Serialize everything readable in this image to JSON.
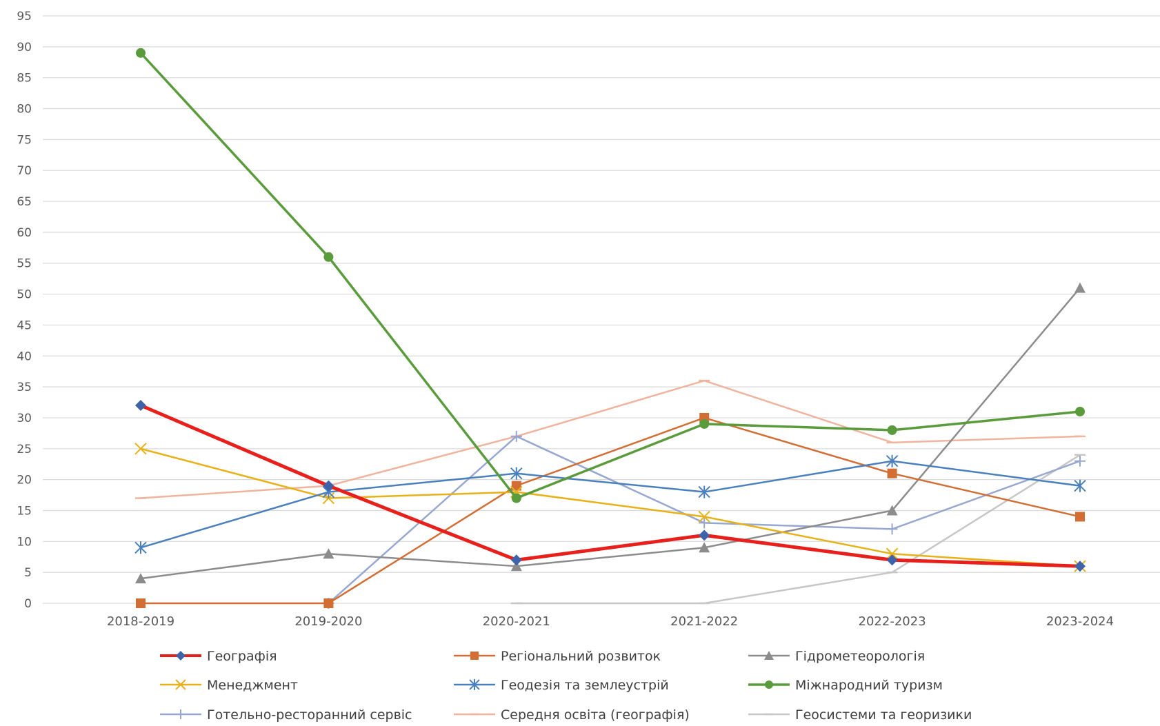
{
  "chart_data": {
    "type": "line",
    "categories": [
      "2018-2019",
      "2019-2020",
      "2020-2021",
      "2021-2022",
      "2022-2023",
      "2023-2024"
    ],
    "ylim": [
      0,
      95
    ],
    "yticks": [
      0,
      5,
      10,
      15,
      20,
      25,
      30,
      35,
      40,
      45,
      50,
      55,
      60,
      65,
      70,
      75,
      80,
      85,
      90,
      95
    ],
    "grid": true,
    "legend_position": "bottom",
    "series": [
      {
        "name": "Географія",
        "values": [
          32,
          19,
          7,
          11,
          7,
          6
        ],
        "color": "#e8201c",
        "marker": "diamond",
        "marker_color": "#3f63a8",
        "width": 5
      },
      {
        "name": "Регіональний розвиток",
        "values": [
          0,
          0,
          19,
          30,
          21,
          14
        ],
        "color": "#d26e33",
        "marker": "square",
        "marker_color": "#d26e33",
        "width": 2.5
      },
      {
        "name": "Гідрометеорологія",
        "values": [
          4,
          8,
          6,
          9,
          15,
          51
        ],
        "color": "#8c8c8c",
        "marker": "triangle",
        "marker_color": "#8c8c8c",
        "width": 2.5
      },
      {
        "name": "Менеджмент",
        "values": [
          25,
          17,
          18,
          14,
          8,
          6
        ],
        "color": "#e8b117",
        "marker": "x",
        "marker_color": "#e8b117",
        "width": 2.5
      },
      {
        "name": "Геодезія та землеустрій",
        "values": [
          9,
          18,
          21,
          18,
          23,
          19
        ],
        "color": "#4a80bd",
        "marker": "star",
        "marker_color": "#4a80bd",
        "width": 2.5
      },
      {
        "name": "Міжнародний туризм",
        "values": [
          89,
          56,
          17,
          29,
          28,
          31
        ],
        "color": "#5a9b3b",
        "marker": "circle",
        "marker_color": "#5a9b3b",
        "width": 3.5
      },
      {
        "name": "Готельно-ресторанний сервіс",
        "values": [
          null,
          0,
          27,
          13,
          12,
          23
        ],
        "color": "#97a7cf",
        "marker": "plus",
        "marker_color": "#97a7cf",
        "width": 2.5
      },
      {
        "name": "Середня освіта (географія)",
        "values": [
          17,
          19,
          27,
          36,
          26,
          27
        ],
        "color": "#f0b39d",
        "marker": "dash",
        "marker_color": "#f0b39d",
        "width": 2.5
      },
      {
        "name": "Геосистеми та георизики",
        "values": [
          null,
          null,
          0,
          0,
          5,
          24
        ],
        "color": "#c7c7c7",
        "marker": "dash",
        "marker_color": "#c7c7c7",
        "width": 2.5
      }
    ]
  }
}
